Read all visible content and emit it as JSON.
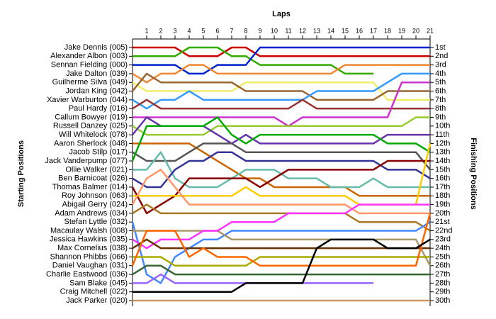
{
  "chart_data": {
    "type": "line",
    "xlabel": "Laps",
    "ylabel": "Starting Positions",
    "y2label": "Finishing Positions",
    "x": [
      0,
      1,
      2,
      3,
      4,
      5,
      6,
      7,
      8,
      9,
      10,
      11,
      12,
      13,
      14,
      15,
      16,
      17,
      18,
      19,
      20,
      21
    ],
    "xlim": [
      0,
      21
    ],
    "xticks": [
      1,
      2,
      3,
      4,
      5,
      6,
      7,
      8,
      9,
      10,
      11,
      12,
      13,
      14,
      15,
      16,
      17,
      18,
      19,
      20,
      21
    ],
    "ylim": [
      1,
      30
    ],
    "yticks": [
      1,
      2,
      3,
      4,
      5,
      6,
      7,
      8,
      9,
      10,
      11,
      12,
      13,
      14,
      15,
      16,
      17,
      18,
      19,
      20,
      21,
      22,
      23,
      24,
      25,
      26,
      27,
      28,
      29,
      30
    ],
    "finishing_labels": [
      "1st",
      "2nd",
      "3rd",
      "4th",
      "5th",
      "6th",
      "7th",
      "8th",
      "9th",
      "10th",
      "11th",
      "12th",
      "13th",
      "14th",
      "15th",
      "16th",
      "17th",
      "18th",
      "19th",
      "20th",
      "21st",
      "22nd",
      "23rd",
      "24th",
      "25th",
      "26th",
      "27th",
      "28th",
      "29th",
      "30th"
    ],
    "series": [
      {
        "name": "Jake Dennis (005)",
        "color": "#cc0000",
        "values": [
          1,
          1,
          1,
          1,
          2,
          2,
          2,
          1,
          1,
          2,
          2,
          2,
          2,
          2,
          2,
          2,
          2,
          2,
          2,
          2,
          2,
          2
        ]
      },
      {
        "name": "Alexander Albon (003)",
        "color": "#33aa00",
        "values": [
          2,
          2,
          2,
          2,
          1,
          1,
          1,
          2,
          2,
          3,
          3,
          3,
          3,
          3,
          3,
          4,
          4,
          4,
          null,
          null,
          null,
          null
        ]
      },
      {
        "name": "Sennan Fielding (000)",
        "color": "#0022cc",
        "values": [
          3,
          3,
          3,
          3,
          4,
          4,
          3,
          3,
          3,
          1,
          1,
          1,
          1,
          1,
          1,
          1,
          1,
          1,
          1,
          1,
          1,
          1
        ]
      },
      {
        "name": "Jake Dalton (039)",
        "color": "#ee8833",
        "values": [
          4,
          5,
          4,
          4,
          3,
          3,
          4,
          4,
          4,
          4,
          4,
          4,
          4,
          4,
          4,
          3,
          3,
          3,
          3,
          3,
          3,
          3
        ]
      },
      {
        "name": "Guilherme Silva (049)",
        "color": "#eeee66",
        "values": [
          5,
          6,
          6,
          6,
          6,
          6,
          6,
          6,
          5,
          5,
          5,
          5,
          5,
          5,
          5,
          5,
          5,
          5,
          7,
          7,
          7,
          7
        ]
      },
      {
        "name": "Jordan King (042)",
        "color": "#996633",
        "values": [
          6,
          4,
          5,
          5,
          5,
          5,
          5,
          5,
          6,
          6,
          6,
          6,
          6,
          7,
          7,
          7,
          7,
          7,
          6,
          6,
          6,
          6
        ]
      },
      {
        "name": "Xavier Warburton (044)",
        "color": "#3399ff",
        "values": [
          7,
          8,
          7,
          7,
          6,
          7,
          7,
          7,
          7,
          7,
          7,
          7,
          7,
          6,
          6,
          6,
          6,
          6,
          5,
          4,
          4,
          4
        ]
      },
      {
        "name": "Paul Hardy (016)",
        "color": "#993333",
        "values": [
          8,
          7,
          8,
          8,
          8,
          8,
          8,
          8,
          8,
          8,
          8,
          8,
          7,
          8,
          8,
          8,
          8,
          8,
          8,
          8,
          8,
          8
        ]
      },
      {
        "name": "Callum Bowyer (019)",
        "color": "#cc33cc",
        "values": [
          9,
          9,
          9,
          9,
          9,
          9,
          9,
          9,
          9,
          9,
          9,
          10,
          9,
          9,
          9,
          9,
          9,
          9,
          9,
          5,
          5,
          5
        ]
      },
      {
        "name": "Russell Danzey (025)",
        "color": "#99cc33",
        "values": [
          10,
          11,
          11,
          11,
          11,
          11,
          10,
          10,
          10,
          10,
          10,
          10,
          10,
          10,
          10,
          10,
          10,
          10,
          10,
          10,
          9,
          9
        ]
      },
      {
        "name": "Will Whitelock (078)",
        "color": "#6633aa",
        "values": [
          11,
          9,
          10,
          10,
          10,
          10,
          11,
          12,
          11,
          12,
          12,
          12,
          12,
          12,
          12,
          12,
          12,
          12,
          11,
          11,
          11,
          11
        ]
      },
      {
        "name": "Aaron Sherlock (048)",
        "color": "#cc6600",
        "values": [
          12,
          12,
          12,
          12,
          12,
          13,
          14,
          15,
          16,
          16,
          17,
          17,
          17,
          17,
          17,
          17,
          18,
          18,
          18,
          18,
          18,
          18
        ]
      },
      {
        "name": "Jacob Stilp (017)",
        "color": "#555555",
        "values": [
          13,
          14,
          14,
          14,
          13,
          12,
          12,
          12,
          13,
          13,
          13,
          13,
          13,
          13,
          13,
          13,
          13,
          13,
          13,
          13,
          13,
          15
        ]
      },
      {
        "name": "Jack Vanderpump (077)",
        "color": "#00aa00",
        "values": [
          14,
          10,
          10,
          10,
          10,
          10,
          9,
          11,
          12,
          11,
          11,
          11,
          11,
          11,
          11,
          11,
          11,
          11,
          12,
          12,
          12,
          13
        ]
      },
      {
        "name": "Ollie Walker (021)",
        "color": "#66bbaa",
        "values": [
          15,
          15,
          13,
          16,
          17,
          17,
          17,
          16,
          15,
          15,
          15,
          16,
          16,
          16,
          17,
          17,
          17,
          16,
          17,
          17,
          17,
          17
        ]
      },
      {
        "name": "Ben Barnicoat (026)",
        "color": "#333399",
        "values": [
          16,
          17,
          17,
          15,
          14,
          14,
          13,
          13,
          14,
          14,
          14,
          14,
          14,
          14,
          14,
          14,
          14,
          14,
          15,
          15,
          15,
          16
        ]
      },
      {
        "name": "Thomas Balmer (014)",
        "color": "#880000",
        "values": [
          17,
          20,
          19,
          18,
          16,
          16,
          16,
          16,
          16,
          17,
          16,
          15,
          15,
          15,
          15,
          15,
          15,
          15,
          14,
          14,
          14,
          14
        ]
      },
      {
        "name": "Roy Johnson (063)",
        "color": "#ffcc00",
        "values": [
          18,
          18,
          18,
          18,
          18,
          18,
          18,
          18,
          17,
          18,
          18,
          18,
          18,
          18,
          18,
          18,
          19,
          19,
          19,
          19,
          19,
          12
        ]
      },
      {
        "name": "Abigail Gerry (024)",
        "color": "#ff9966",
        "values": [
          19,
          16,
          15,
          17,
          19,
          19,
          19,
          19,
          19,
          19,
          19,
          19,
          19,
          19,
          19,
          19,
          20,
          20,
          20,
          20,
          20,
          20
        ]
      },
      {
        "name": "Adam Andrews (034)",
        "color": "#aa7722",
        "values": [
          20,
          19,
          20,
          20,
          20,
          20,
          20,
          20,
          20,
          20,
          20,
          20,
          20,
          20,
          20,
          20,
          21,
          21,
          21,
          21,
          21,
          22
        ]
      },
      {
        "name": "Stefan Lyttle (032)",
        "color": "#4488ff",
        "values": [
          21,
          27,
          28,
          25,
          24,
          23,
          23,
          22,
          22,
          22,
          22,
          22,
          22,
          22,
          22,
          22,
          22,
          22,
          22,
          22,
          22,
          21
        ]
      },
      {
        "name": "Macaulay Walsh (008)",
        "color": "#aa9966",
        "values": [
          22,
          22,
          22,
          22,
          22,
          22,
          22,
          23,
          23,
          23,
          23,
          23,
          23,
          23,
          23,
          23,
          23,
          23,
          23,
          23,
          23,
          26
        ]
      },
      {
        "name": "Jessica Hawkins (035)",
        "color": "#ff33ff",
        "values": [
          23,
          24,
          23,
          23,
          23,
          22,
          22,
          21,
          21,
          21,
          21,
          20,
          20,
          20,
          20,
          20,
          19,
          19,
          19,
          19,
          19,
          19
        ]
      },
      {
        "name": "Max Cornelius (038)",
        "color": "#663300",
        "values": [
          24,
          23,
          24,
          24,
          24,
          24,
          24,
          24,
          24,
          24,
          24,
          24,
          24,
          24,
          24,
          24,
          24,
          24,
          24,
          24,
          24,
          24
        ]
      },
      {
        "name": "Shannon Phibbs (066)",
        "color": "#aaaa00",
        "values": [
          25,
          25,
          25,
          26,
          26,
          26,
          26,
          26,
          26,
          25,
          25,
          25,
          25,
          25,
          25,
          25,
          25,
          25,
          25,
          25,
          25,
          25
        ]
      },
      {
        "name": "Daniel Vaughan (031)",
        "color": "#ff6600",
        "values": [
          26,
          22,
          22,
          22,
          25,
          24,
          25,
          25,
          25,
          26,
          26,
          26,
          26,
          26,
          26,
          26,
          26,
          26,
          26,
          26,
          26,
          20
        ]
      },
      {
        "name": "Charlie Eastwood (036)",
        "color": "#336633",
        "values": [
          27,
          26,
          26,
          27,
          27,
          27,
          27,
          27,
          27,
          27,
          27,
          27,
          27,
          27,
          27,
          27,
          27,
          27,
          27,
          27,
          27,
          27
        ]
      },
      {
        "name": "Sam Blake (045)",
        "color": "#9966ff",
        "values": [
          28,
          28,
          27,
          28,
          28,
          28,
          28,
          28,
          28,
          28,
          28,
          28,
          28,
          28,
          28,
          28,
          28,
          28,
          null,
          null,
          null,
          null
        ]
      },
      {
        "name": "Craig Mitchell (022)",
        "color": "#000000",
        "values": [
          29,
          29,
          29,
          29,
          29,
          29,
          29,
          29,
          28,
          28,
          28,
          28,
          28,
          24,
          23,
          23,
          23,
          23,
          24,
          24,
          24,
          23
        ]
      },
      {
        "name": "Jack Parker (020)",
        "color": "#cc9966",
        "values": [
          30,
          30,
          30,
          30,
          30,
          30,
          30,
          30,
          30,
          30,
          30,
          30,
          30,
          30,
          30,
          30,
          30,
          30,
          30,
          30,
          30,
          30
        ]
      }
    ]
  }
}
